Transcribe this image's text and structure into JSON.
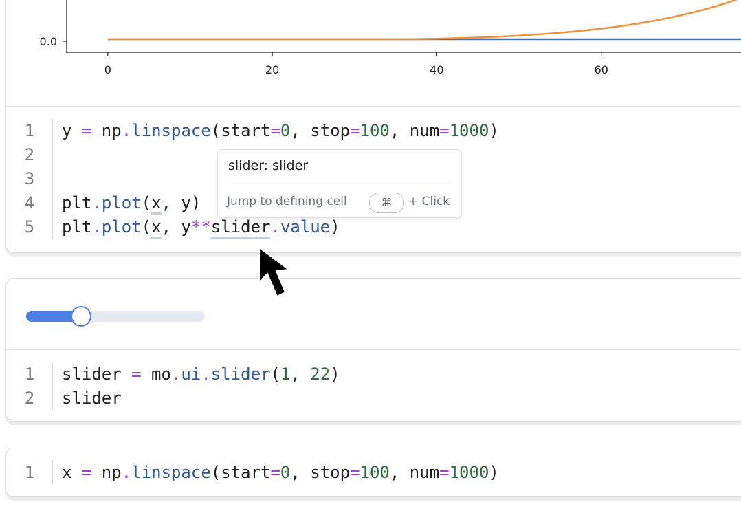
{
  "plot": {
    "xlim": [
      -5,
      77
    ],
    "ylim": [
      -0.05,
      0.9
    ],
    "xticks": [
      0,
      20,
      40,
      60
    ],
    "yticks": [
      {
        "value": 0,
        "label": "0.0"
      }
    ]
  },
  "cells": [
    {
      "lines": [
        {
          "number": "1",
          "tokens": [
            {
              "text": "y ",
              "color": "#1f1f1f"
            },
            {
              "text": "=",
              "color": "#a43fd6"
            },
            {
              "text": " np",
              "color": "#1f1f1f"
            },
            {
              "text": ".",
              "color": "#a43fd6"
            },
            {
              "text": "linspace",
              "color": "#2b5797"
            },
            {
              "text": "(start",
              "color": "#1f1f1f"
            },
            {
              "text": "=",
              "color": "#a43fd6"
            },
            {
              "text": "0",
              "color": "#2e6b3f"
            },
            {
              "text": ", stop",
              "color": "#1f1f1f"
            },
            {
              "text": "=",
              "color": "#a43fd6"
            },
            {
              "text": "100",
              "color": "#2e6b3f"
            },
            {
              "text": ", num",
              "color": "#1f1f1f"
            },
            {
              "text": "=",
              "color": "#a43fd6"
            },
            {
              "text": "1000",
              "color": "#2e6b3f"
            },
            {
              "text": ")",
              "color": "#1f1f1f"
            }
          ]
        },
        {
          "number": "2",
          "tokens": []
        },
        {
          "number": "3",
          "tokens": []
        },
        {
          "number": "4",
          "tokens": [
            {
              "text": "plt",
              "color": "#1f1f1f"
            },
            {
              "text": ".",
              "color": "#a43fd6"
            },
            {
              "text": "plot",
              "color": "#2b5797"
            },
            {
              "text": "(",
              "color": "#1f1f1f"
            },
            {
              "text": "x",
              "color": "#1f1f1f",
              "underline": true
            },
            {
              "text": ", y)",
              "color": "#1f1f1f"
            }
          ]
        },
        {
          "number": "5",
          "tokens": [
            {
              "text": "plt",
              "color": "#1f1f1f"
            },
            {
              "text": ".",
              "color": "#a43fd6"
            },
            {
              "text": "plot",
              "color": "#2b5797"
            },
            {
              "text": "(",
              "color": "#1f1f1f"
            },
            {
              "text": "x",
              "color": "#1f1f1f",
              "underline": true
            },
            {
              "text": ", y",
              "color": "#1f1f1f"
            },
            {
              "text": "**",
              "color": "#a43fd6"
            },
            {
              "text": "slider",
              "color": "#1f1f1f",
              "underline": true
            },
            {
              "text": ".",
              "color": "#a43fd6"
            },
            {
              "text": "value",
              "color": "#2b5797"
            },
            {
              "text": ")",
              "color": "#1f1f1f"
            }
          ]
        }
      ]
    },
    {
      "lines": [
        {
          "number": "1",
          "tokens": [
            {
              "text": "slider ",
              "color": "#1f1f1f"
            },
            {
              "text": "=",
              "color": "#a43fd6"
            },
            {
              "text": " mo",
              "color": "#1f1f1f"
            },
            {
              "text": ".",
              "color": "#a43fd6"
            },
            {
              "text": "ui",
              "color": "#2b5797"
            },
            {
              "text": ".",
              "color": "#a43fd6"
            },
            {
              "text": "slider",
              "color": "#2b5797"
            },
            {
              "text": "(",
              "color": "#1f1f1f"
            },
            {
              "text": "1",
              "color": "#2e6b3f"
            },
            {
              "text": ", ",
              "color": "#1f1f1f"
            },
            {
              "text": "22",
              "color": "#2e6b3f"
            },
            {
              "text": ")",
              "color": "#1f1f1f"
            }
          ]
        },
        {
          "number": "2",
          "tokens": [
            {
              "text": "slider",
              "color": "#1f1f1f"
            }
          ]
        }
      ]
    },
    {
      "lines": [
        {
          "number": "1",
          "tokens": [
            {
              "text": "x ",
              "color": "#1f1f1f"
            },
            {
              "text": "=",
              "color": "#a43fd6"
            },
            {
              "text": " np",
              "color": "#1f1f1f"
            },
            {
              "text": ".",
              "color": "#a43fd6"
            },
            {
              "text": "linspace",
              "color": "#2b5797"
            },
            {
              "text": "(start",
              "color": "#1f1f1f"
            },
            {
              "text": "=",
              "color": "#a43fd6"
            },
            {
              "text": "0",
              "color": "#2e6b3f"
            },
            {
              "text": ", stop",
              "color": "#1f1f1f"
            },
            {
              "text": "=",
              "color": "#a43fd6"
            },
            {
              "text": "100",
              "color": "#2e6b3f"
            },
            {
              "text": ", num",
              "color": "#1f1f1f"
            },
            {
              "text": "=",
              "color": "#a43fd6"
            },
            {
              "text": "1000",
              "color": "#2e6b3f"
            },
            {
              "text": ")",
              "color": "#1f1f1f"
            }
          ]
        }
      ]
    }
  ],
  "tooltip": {
    "title": "slider: slider",
    "hint": "Jump to defining cell",
    "key": "⌘",
    "action": "+ Click"
  }
}
